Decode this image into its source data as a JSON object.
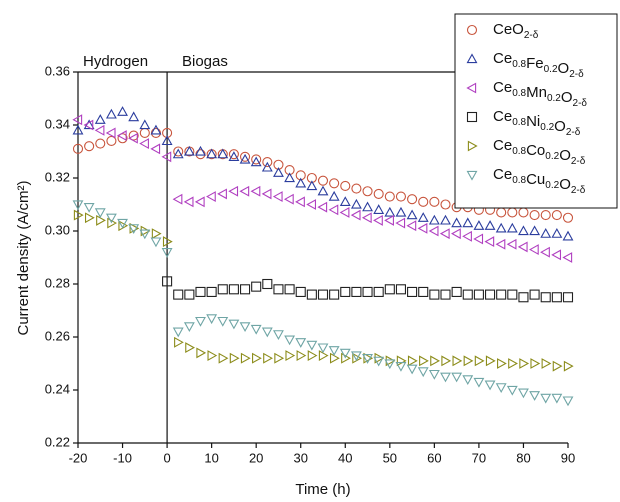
{
  "chart_data": {
    "type": "scatter",
    "x_label": "Time (h)",
    "y_label": "Current density (A/cm²)",
    "annotations": [
      "Hydrogen",
      "Biogas"
    ],
    "xlim": [
      -20,
      90
    ],
    "xticks": [
      -20,
      -10,
      0,
      10,
      20,
      30,
      40,
      50,
      60,
      70,
      80,
      90
    ],
    "ylim": [
      0.22,
      0.36
    ],
    "yticks": [
      0.22,
      0.24,
      0.26,
      0.28,
      {
        "value": 0.3,
        "label": "0.30"
      },
      0.32,
      0.34,
      0.36
    ],
    "legend": "top-right",
    "x": [
      -20,
      -17.5,
      -15,
      -12.5,
      -10,
      -7.5,
      -5,
      -2.5,
      0,
      2.5,
      5,
      7.5,
      10,
      12.5,
      15,
      17.5,
      20,
      22.5,
      25,
      27.5,
      30,
      32.5,
      35,
      37.5,
      40,
      42.5,
      45,
      47.5,
      50,
      52.5,
      55,
      57.5,
      60,
      62.5,
      65,
      67.5,
      70,
      72.5,
      75,
      77.5,
      80,
      82.5,
      85,
      87.5,
      90
    ],
    "series": [
      {
        "name": "CeO2-δ",
        "color": "#c8553d",
        "marker": "circle",
        "values": [
          0.331,
          0.332,
          0.333,
          0.334,
          0.335,
          0.336,
          0.337,
          0.337,
          0.337,
          0.33,
          0.33,
          0.329,
          0.329,
          0.329,
          0.329,
          0.328,
          0.327,
          0.326,
          0.325,
          0.323,
          0.321,
          0.32,
          0.319,
          0.318,
          0.317,
          0.316,
          0.315,
          0.314,
          0.313,
          0.313,
          0.312,
          0.311,
          0.311,
          0.31,
          0.309,
          0.309,
          0.308,
          0.308,
          0.307,
          0.307,
          0.307,
          0.306,
          0.306,
          0.306,
          0.305
        ]
      },
      {
        "name": "Ce0.8Fe0.2O2-δ",
        "color": "#2b3d9e",
        "marker": "triangle-up",
        "values": [
          0.338,
          0.34,
          0.342,
          0.344,
          0.345,
          0.343,
          0.34,
          0.338,
          0.334,
          0.329,
          0.33,
          0.33,
          0.329,
          0.329,
          0.328,
          0.327,
          0.326,
          0.324,
          0.322,
          0.32,
          0.318,
          0.317,
          0.315,
          0.313,
          0.311,
          0.31,
          0.309,
          0.308,
          0.307,
          0.307,
          0.306,
          0.305,
          0.304,
          0.304,
          0.303,
          0.303,
          0.302,
          0.302,
          0.301,
          0.301,
          0.3,
          0.3,
          0.299,
          0.299,
          0.298
        ]
      },
      {
        "name": "Ce0.8Mn0.2O2-δ",
        "color": "#b03fc0",
        "marker": "triangle-left",
        "values": [
          0.342,
          0.34,
          0.338,
          0.337,
          0.336,
          0.335,
          0.333,
          0.331,
          0.328,
          0.312,
          0.311,
          0.311,
          0.313,
          0.314,
          0.315,
          0.315,
          0.315,
          0.314,
          0.313,
          0.312,
          0.311,
          0.31,
          0.309,
          0.308,
          0.307,
          0.306,
          0.305,
          0.304,
          0.304,
          0.303,
          0.302,
          0.301,
          0.3,
          0.299,
          0.299,
          0.298,
          0.297,
          0.296,
          0.295,
          0.295,
          0.294,
          0.293,
          0.292,
          0.291,
          0.29
        ]
      },
      {
        "name": "Ce0.8Ni0.2O2-δ",
        "color": "#222222",
        "marker": "square",
        "values": [
          null,
          null,
          null,
          null,
          null,
          null,
          null,
          null,
          0.281,
          0.276,
          0.276,
          0.277,
          0.277,
          0.278,
          0.278,
          0.278,
          0.279,
          0.28,
          0.278,
          0.278,
          0.277,
          0.276,
          0.276,
          0.276,
          0.277,
          0.277,
          0.277,
          0.277,
          0.278,
          0.278,
          0.277,
          0.277,
          0.276,
          0.276,
          0.277,
          0.276,
          0.276,
          0.276,
          0.276,
          0.276,
          0.275,
          0.276,
          0.275,
          0.275,
          0.275
        ]
      },
      {
        "name": "Ce0.8Co0.2O2-δ",
        "color": "#8c8c1a",
        "marker": "triangle-right",
        "values": [
          0.306,
          0.305,
          0.304,
          0.303,
          0.302,
          0.301,
          0.3,
          0.299,
          0.296,
          0.258,
          0.256,
          0.254,
          0.253,
          0.252,
          0.252,
          0.252,
          0.252,
          0.252,
          0.252,
          0.253,
          0.253,
          0.253,
          0.253,
          0.252,
          0.252,
          0.252,
          0.252,
          0.252,
          0.251,
          0.251,
          0.251,
          0.251,
          0.251,
          0.251,
          0.251,
          0.251,
          0.251,
          0.251,
          0.25,
          0.25,
          0.25,
          0.25,
          0.25,
          0.249,
          0.249
        ]
      },
      {
        "name": "Ce0.8Cu0.2O2-δ",
        "color": "#6fa5a5",
        "marker": "triangle-down",
        "values": [
          0.31,
          0.309,
          0.307,
          0.305,
          0.303,
          0.301,
          0.299,
          0.296,
          0.292,
          0.262,
          0.264,
          0.266,
          0.267,
          0.266,
          0.265,
          0.264,
          0.263,
          0.262,
          0.261,
          0.259,
          0.258,
          0.257,
          0.256,
          0.255,
          0.254,
          0.253,
          0.252,
          0.251,
          0.25,
          0.249,
          0.248,
          0.247,
          0.246,
          0.245,
          0.245,
          0.244,
          0.243,
          0.242,
          0.241,
          0.24,
          0.239,
          0.238,
          0.237,
          0.237,
          0.236
        ]
      }
    ]
  }
}
